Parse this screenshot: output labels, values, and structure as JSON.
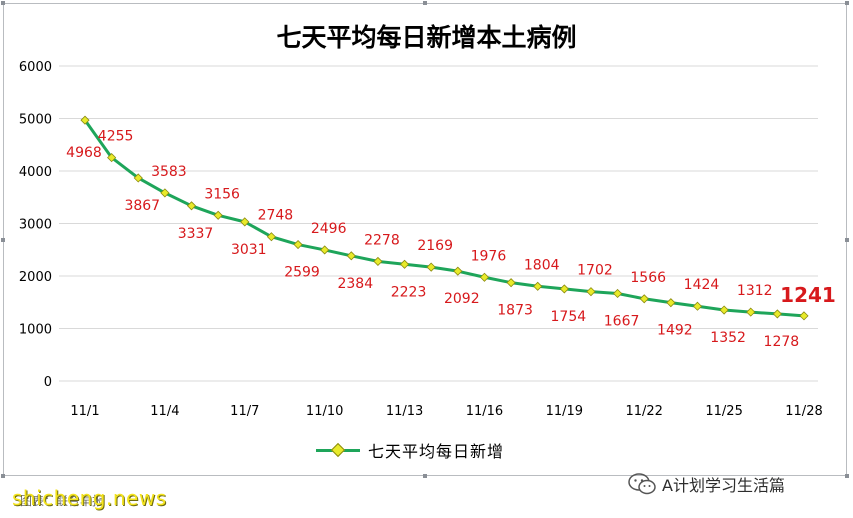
{
  "header": {
    "title": "七天平均每日新增本土病例"
  },
  "chart_data": {
    "type": "line",
    "title": "七天平均每日新增本土病例",
    "xlabel": "",
    "ylabel": "",
    "ylim": [
      0,
      6000
    ],
    "y_ticks": [
      0,
      1000,
      2000,
      3000,
      4000,
      5000,
      6000
    ],
    "x": [
      "11/1",
      "11/2",
      "11/3",
      "11/4",
      "11/5",
      "11/6",
      "11/7",
      "11/8",
      "11/9",
      "11/10",
      "11/11",
      "11/12",
      "11/13",
      "11/14",
      "11/15",
      "11/16",
      "11/17",
      "11/18",
      "11/19",
      "11/20",
      "11/21",
      "11/22",
      "11/23",
      "11/24",
      "11/25",
      "11/26",
      "11/27",
      "11/28"
    ],
    "x_tick_labels": [
      "11/1",
      "11/4",
      "11/7",
      "11/10",
      "11/13",
      "11/16",
      "11/19",
      "11/22",
      "11/25",
      "11/28"
    ],
    "series": [
      {
        "name": "七天平均每日新增",
        "values": [
          4968,
          4255,
          3867,
          3583,
          3337,
          3156,
          3031,
          2748,
          2599,
          2496,
          2384,
          2278,
          2223,
          2169,
          2092,
          1976,
          1873,
          1804,
          1754,
          1702,
          1667,
          1566,
          1492,
          1424,
          1352,
          1312,
          1278,
          1241
        ]
      }
    ],
    "grid": true,
    "legend": "bottom",
    "colors": {
      "line": "#1ea55a",
      "marker": "#e8ea2a",
      "labels": "#d7191c"
    }
  },
  "legend": {
    "label": "七天平均每日新增"
  },
  "footer": {
    "wechat": "A计划学习生活篇",
    "watermark": "shicheng.news",
    "source_note": "图表：联合早报"
  },
  "colors": {
    "line": "#1ea55a",
    "marker": "#e8ea2a",
    "data_label": "#d7191c",
    "grid": "#d9d9d9"
  }
}
